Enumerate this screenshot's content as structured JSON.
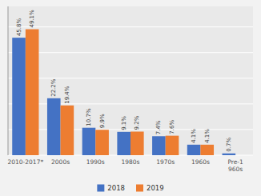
{
  "chart_data": {
    "type": "bar",
    "categories": [
      "2010-2017*",
      "2000s",
      "1990s",
      "1980s",
      "1970s",
      "1960s",
      "Pre-1\n960s"
    ],
    "series": [
      {
        "name": "2018",
        "color": "#4472C4",
        "values": [
          45.8,
          22.2,
          10.7,
          9.1,
          7.4,
          4.1,
          0.7
        ],
        "value_labels": [
          "45.8%",
          "22.2%",
          "10.7%",
          "9.1%",
          "7.4%",
          "4.1%",
          "0.7%"
        ]
      },
      {
        "name": "2019",
        "color": "#ED7D31",
        "values": [
          49.1,
          19.4,
          9.9,
          9.2,
          7.6,
          4.1,
          0.0
        ],
        "value_labels": [
          "49.1%",
          "19.4%",
          "9.9%",
          "9.2%",
          "7.6%",
          "4.1%",
          null
        ]
      }
    ],
    "ylim": [
      0,
      58
    ],
    "yticks": [
      0,
      10,
      20,
      30,
      40,
      50
    ],
    "grid": true,
    "legend": "bottom",
    "data_labels": true,
    "tick_labels": "x"
  }
}
